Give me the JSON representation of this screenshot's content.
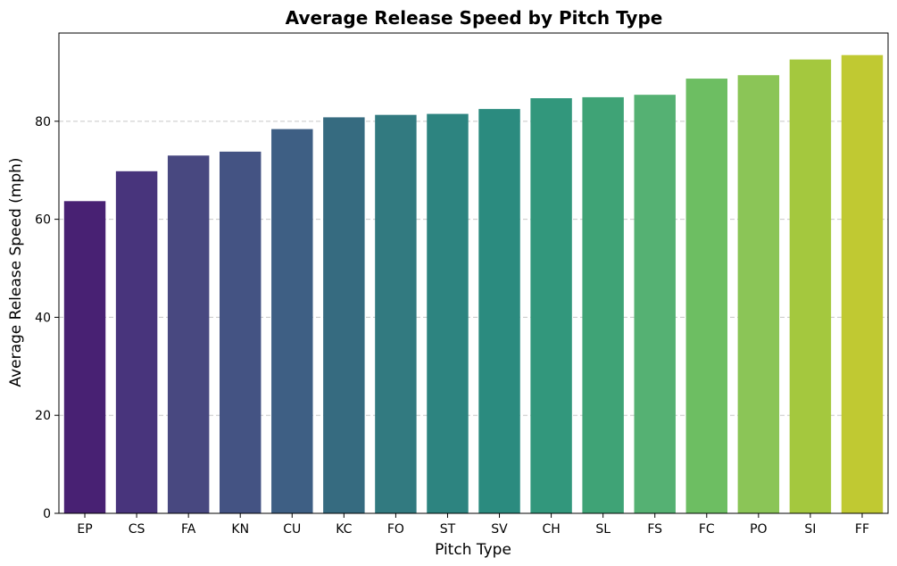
{
  "chart_data": {
    "type": "bar",
    "title": "Average Release Speed by Pitch Type",
    "xlabel": "Pitch Type",
    "ylabel": "Average Release Speed (mph)",
    "ylim": [
      0,
      98
    ],
    "yticks": [
      0,
      20,
      40,
      60,
      80
    ],
    "grid": "y-dashed",
    "categories": [
      "EP",
      "CS",
      "FA",
      "KN",
      "CU",
      "KC",
      "FO",
      "ST",
      "SV",
      "CH",
      "SL",
      "FS",
      "FC",
      "PO",
      "SI",
      "FF"
    ],
    "values": [
      63.7,
      69.8,
      73.0,
      73.8,
      78.4,
      80.8,
      81.3,
      81.5,
      82.5,
      84.7,
      84.9,
      85.4,
      88.7,
      89.4,
      92.6,
      93.5
    ],
    "colors": [
      "#482173",
      "#48347c",
      "#484880",
      "#445383",
      "#3e5f84",
      "#366b80",
      "#327a80",
      "#2d8480",
      "#2b8b7f",
      "#32977c",
      "#3fa376",
      "#55b173",
      "#6dbe62",
      "#8bc557",
      "#a4c83e",
      "#c0c932"
    ]
  }
}
